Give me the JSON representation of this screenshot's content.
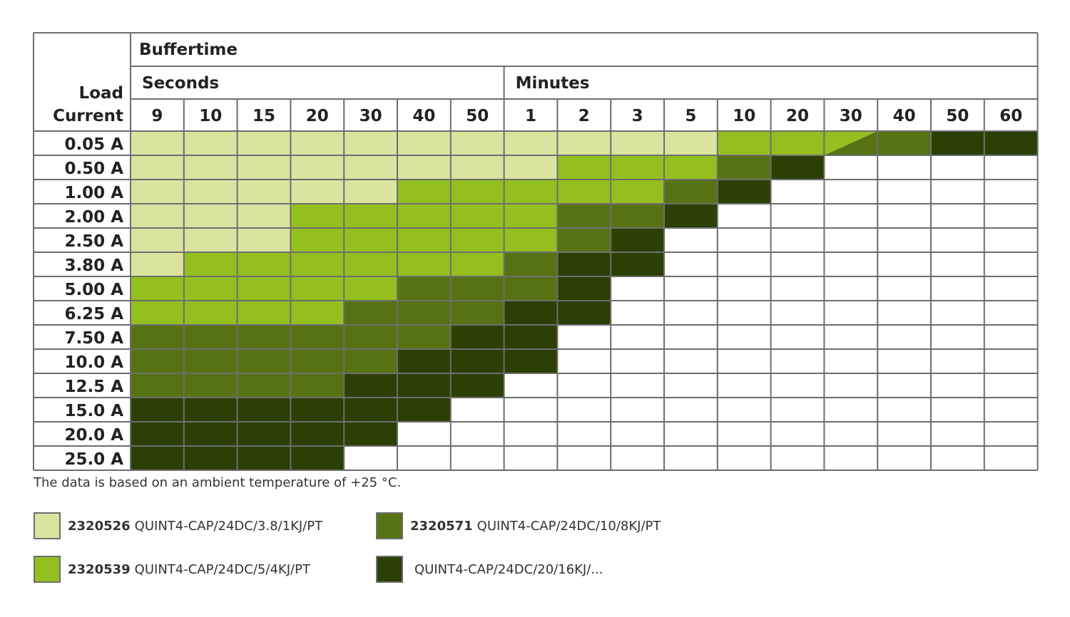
{
  "chart_data": {
    "type": "table",
    "title": "Buffertime",
    "row_header": [
      "Load",
      "Current"
    ],
    "column_groups": [
      {
        "label": "Seconds",
        "columns": [
          "9",
          "10",
          "15",
          "20",
          "30",
          "40",
          "50"
        ]
      },
      {
        "label": "Minutes",
        "columns": [
          "1",
          "2",
          "3",
          "5",
          "10",
          "20",
          "30",
          "40",
          "50",
          "60"
        ]
      }
    ],
    "rows": [
      {
        "label": "0.05 A",
        "cells": [
          0,
          0,
          0,
          0,
          0,
          0,
          0,
          0,
          0,
          0,
          0,
          1,
          1,
          "1/2",
          2,
          3,
          3
        ]
      },
      {
        "label": "0.50 A",
        "cells": [
          0,
          0,
          0,
          0,
          0,
          0,
          0,
          0,
          1,
          1,
          1,
          2,
          3,
          null,
          null,
          null,
          null
        ]
      },
      {
        "label": "1.00 A",
        "cells": [
          0,
          0,
          0,
          0,
          0,
          1,
          1,
          1,
          1,
          1,
          2,
          3,
          null,
          null,
          null,
          null,
          null
        ]
      },
      {
        "label": "2.00 A",
        "cells": [
          0,
          0,
          0,
          1,
          1,
          1,
          1,
          1,
          2,
          2,
          3,
          null,
          null,
          null,
          null,
          null,
          null
        ]
      },
      {
        "label": "2.50 A",
        "cells": [
          0,
          0,
          0,
          1,
          1,
          1,
          1,
          1,
          2,
          3,
          null,
          null,
          null,
          null,
          null,
          null,
          null
        ]
      },
      {
        "label": "3.80 A",
        "cells": [
          0,
          1,
          1,
          1,
          1,
          1,
          1,
          2,
          3,
          3,
          null,
          null,
          null,
          null,
          null,
          null,
          null
        ]
      },
      {
        "label": "5.00 A",
        "cells": [
          1,
          1,
          1,
          1,
          1,
          2,
          2,
          2,
          3,
          null,
          null,
          null,
          null,
          null,
          null,
          null,
          null
        ]
      },
      {
        "label": "6.25 A",
        "cells": [
          1,
          1,
          1,
          1,
          2,
          2,
          2,
          3,
          3,
          null,
          null,
          null,
          null,
          null,
          null,
          null,
          null
        ]
      },
      {
        "label": "7.50 A",
        "cells": [
          2,
          2,
          2,
          2,
          2,
          2,
          3,
          3,
          null,
          null,
          null,
          null,
          null,
          null,
          null,
          null,
          null
        ]
      },
      {
        "label": "10.0 A",
        "cells": [
          2,
          2,
          2,
          2,
          2,
          3,
          3,
          3,
          null,
          null,
          null,
          null,
          null,
          null,
          null,
          null,
          null
        ]
      },
      {
        "label": "12.5 A",
        "cells": [
          2,
          2,
          2,
          2,
          3,
          3,
          3,
          null,
          null,
          null,
          null,
          null,
          null,
          null,
          null,
          null,
          null
        ]
      },
      {
        "label": "15.0 A",
        "cells": [
          3,
          3,
          3,
          3,
          3,
          3,
          null,
          null,
          null,
          null,
          null,
          null,
          null,
          null,
          null,
          null,
          null
        ]
      },
      {
        "label": "20.0 A",
        "cells": [
          3,
          3,
          3,
          3,
          3,
          null,
          null,
          null,
          null,
          null,
          null,
          null,
          null,
          null,
          null,
          null,
          null
        ]
      },
      {
        "label": "25.0 A",
        "cells": [
          3,
          3,
          3,
          3,
          null,
          null,
          null,
          null,
          null,
          null,
          null,
          null,
          null,
          null,
          null,
          null,
          null
        ]
      }
    ],
    "levels": [
      {
        "code": "2320526",
        "product": "QUINT4-CAP/24DC/3.8/1KJ/PT",
        "color": "#dbe49f"
      },
      {
        "code": "2320539",
        "product": "QUINT4-CAP/24DC/5/4KJ/PT",
        "color": "#93c01f"
      },
      {
        "code": "2320571",
        "product": "QUINT4-CAP/24DC/10/8KJ/PT",
        "color": "#567313"
      },
      {
        "code": "",
        "product": "QUINT4-CAP/24DC/20/16KJ/...",
        "color": "#2c3f05"
      }
    ]
  },
  "note": "The data is based on an ambient temperature of +25 °C.",
  "colors": {
    "grid": "#6e6e6e",
    "empty": "#ffffff"
  }
}
